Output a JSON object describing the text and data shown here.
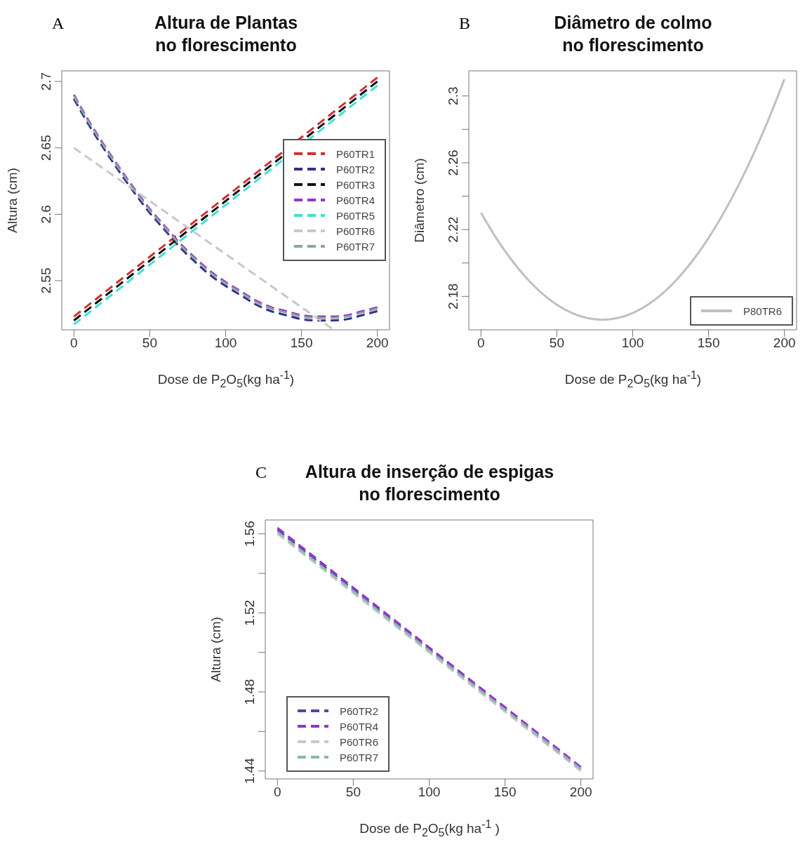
{
  "chart_data": [
    {
      "type": "line",
      "title": "Altura de Plantas\nno florescimento",
      "xlabel": "Dose de P$_{2}$O$_{5}$(kg ha$^{-1}$)",
      "ylabel": "Altura (cm)",
      "annotations": [
        "A"
      ],
      "xlim": [
        -8,
        208
      ],
      "xticks": [
        0,
        50,
        100,
        150,
        200
      ],
      "ylim": [
        2.513,
        2.708
      ],
      "yticks": [
        2.55,
        2.6,
        2.65,
        2.7
      ],
      "legend": "right",
      "line_style": "dashed",
      "series": [
        {
          "name": "P60TR1",
          "color": "#cc3333",
          "x": [
            0,
            200
          ],
          "values": [
            2.523,
            2.703
          ]
        },
        {
          "name": "P60TR2",
          "color": "#303090",
          "x": [
            0,
            10,
            20,
            30,
            40,
            50,
            60,
            70,
            80,
            90,
            100,
            110,
            120,
            130,
            140,
            150,
            160,
            170,
            180,
            190,
            200
          ],
          "values": [
            2.687,
            2.667,
            2.649,
            2.632,
            2.616,
            2.601,
            2.588,
            2.575,
            2.564,
            2.554,
            2.546,
            2.539,
            2.532,
            2.527,
            2.524,
            2.521,
            2.52,
            2.52,
            2.521,
            2.524,
            2.527
          ]
        },
        {
          "name": "P60TR3",
          "color": "#111111",
          "x": [
            0,
            200
          ],
          "values": [
            2.52,
            2.7
          ]
        },
        {
          "name": "P60TR4",
          "color": "#a030c8",
          "x": [
            0,
            10,
            20,
            30,
            40,
            50,
            60,
            70,
            80,
            90,
            100,
            110,
            120,
            130,
            140,
            150,
            160,
            170,
            180,
            190,
            200
          ],
          "values": [
            2.69,
            2.67,
            2.652,
            2.635,
            2.619,
            2.604,
            2.591,
            2.578,
            2.567,
            2.557,
            2.549,
            2.542,
            2.535,
            2.53,
            2.527,
            2.524,
            2.523,
            2.523,
            2.524,
            2.527,
            2.53
          ]
        },
        {
          "name": "P60TR5",
          "color": "#40e0d0",
          "x": [
            0,
            200
          ],
          "values": [
            2.517,
            2.697
          ]
        },
        {
          "name": "P60TR6",
          "color": "#c8c8c8",
          "x": [
            0,
            170
          ],
          "values": [
            2.65,
            2.514
          ]
        },
        {
          "name": "P60TR7",
          "color": "#8aa8a0",
          "x": [
            0,
            10,
            20,
            30,
            40,
            50,
            60,
            70,
            80,
            90,
            100,
            110,
            120,
            130,
            140,
            150,
            160,
            170,
            180,
            190,
            200
          ],
          "values": [
            2.689,
            2.669,
            2.651,
            2.634,
            2.618,
            2.603,
            2.59,
            2.577,
            2.566,
            2.556,
            2.548,
            2.541,
            2.534,
            2.529,
            2.526,
            2.523,
            2.522,
            2.522,
            2.523,
            2.526,
            2.529
          ]
        }
      ]
    },
    {
      "type": "line",
      "title": "Diâmetro de colmo\nno florescimento",
      "xlabel": "Dose de P$_{2}$O$_{5}$(kg ha$^{-1}$)",
      "ylabel": "Diâmetro (cm)",
      "annotations": [
        "B"
      ],
      "xlim": [
        -8,
        208
      ],
      "xticks": [
        0,
        50,
        100,
        150,
        200
      ],
      "ylim": [
        2.16,
        2.315
      ],
      "yticks": [
        2.18,
        {
          "value": 2.2,
          "label": null
        },
        2.22,
        {
          "value": 2.24,
          "label": null
        },
        2.26,
        {
          "value": 2.28,
          "label": null
        },
        2.3
      ],
      "legend": "bottom right",
      "line_style": "solid",
      "series": [
        {
          "name": "P80TR6",
          "color": "#c0c0c0",
          "x": [
            0,
            10,
            20,
            30,
            40,
            50,
            60,
            70,
            80,
            90,
            100,
            110,
            120,
            130,
            140,
            150,
            160,
            170,
            180,
            190,
            200
          ],
          "values": [
            2.23,
            2.215,
            2.202,
            2.191,
            2.182,
            2.175,
            2.17,
            2.167,
            2.166,
            2.167,
            2.17,
            2.175,
            2.182,
            2.191,
            2.202,
            2.215,
            2.23,
            2.247,
            2.266,
            2.287,
            2.31
          ]
        }
      ]
    },
    {
      "type": "line",
      "title": "Altura de inserção de espigas\nno florescimento",
      "xlabel": "Dose de P$_{2}$O$_{5}$(kg ha$^{-1}$ )",
      "ylabel": "Altura (cm)",
      "annotations": [
        "C"
      ],
      "xlim": [
        -8,
        208
      ],
      "xticks": [
        0,
        50,
        100,
        150,
        200
      ],
      "ylim": [
        1.436,
        1.567
      ],
      "yticks": [
        1.44,
        {
          "value": 1.46,
          "label": null
        },
        1.48,
        {
          "value": 1.5,
          "label": null
        },
        1.52,
        {
          "value": 1.54,
          "label": null
        },
        1.56
      ],
      "legend": "bottom left",
      "line_style": "dashed",
      "series": [
        {
          "name": "P60TR2",
          "color": "#4a4aa8",
          "x": [
            0,
            200
          ],
          "values": [
            1.562,
            1.441
          ]
        },
        {
          "name": "P60TR4",
          "color": "#9932cc",
          "x": [
            0,
            200
          ],
          "values": [
            1.563,
            1.442
          ]
        },
        {
          "name": "P60TR6",
          "color": "#c8c8c8",
          "x": [
            0,
            200
          ],
          "values": [
            1.56,
            1.44
          ]
        },
        {
          "name": "P60TR7",
          "color": "#8ab8b0",
          "x": [
            0,
            200
          ],
          "values": [
            1.561,
            1.441
          ]
        }
      ]
    }
  ]
}
